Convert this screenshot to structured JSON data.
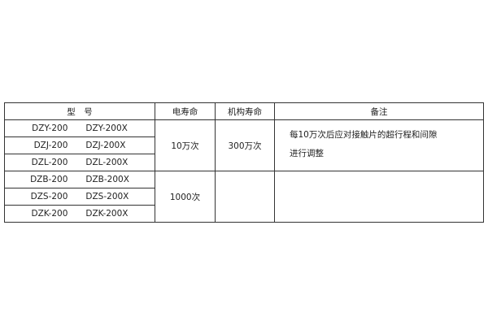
{
  "table": {
    "headers": [
      "型　号",
      "电寿命",
      "机构寿命",
      "备注"
    ],
    "rows": [
      {
        "model": "DZY-200",
        "model_x": "DZY-200X"
      },
      {
        "model": "DZJ-200",
        "model_x": "DZJ-200X"
      },
      {
        "model": "DZL-200",
        "model_x": "DZL-200X"
      },
      {
        "model": "DZB-200",
        "model_x": "DZB-200X"
      },
      {
        "model": "DZS-200",
        "model_x": "DZS-200X"
      },
      {
        "model": "DZK-200",
        "model_x": "DZK-200X"
      }
    ],
    "groups": [
      {
        "electrical_life": "10万次",
        "mechanical_life": "300万次",
        "note_line1": "每10万次后应对接触片的超行程和间隙",
        "note_line2": "进行调整"
      },
      {
        "electrical_life": "1000次",
        "mechanical_life": "",
        "note_line1": "",
        "note_line2": ""
      }
    ]
  }
}
